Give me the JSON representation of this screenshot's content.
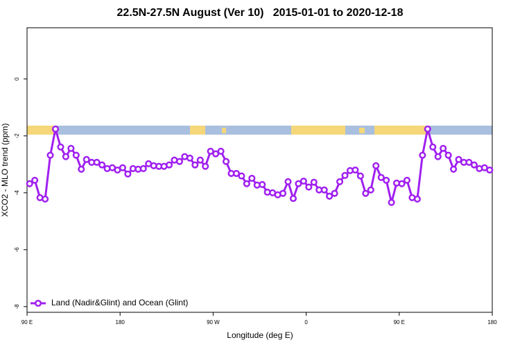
{
  "chart_data": {
    "type": "line",
    "title": "22.5N-27.5N August (Ver 10)   2015-01-01 to 2020-12-18",
    "x_label": "Longitude (deg E)",
    "y_label": "XCO2 - MLO trend (ppm)",
    "xlim": [
      90,
      540
    ],
    "xticks": [
      {
        "value": 90,
        "label": "90 E"
      },
      180,
      {
        "value": 270,
        "label": "90 W"
      },
      {
        "value": 360,
        "label": "0"
      },
      {
        "value": 450,
        "label": "90 E"
      },
      {
        "value": 540,
        "label": "180"
      }
    ],
    "ylim": [
      -8.2,
      1.8
    ],
    "yticks": [
      0,
      -2,
      -4,
      -6,
      -8
    ],
    "legend": "bottom-left",
    "x": [
      92.5,
      97.5,
      102.5,
      107.5,
      112.5,
      117.5,
      122.5,
      127.5,
      132.5,
      137.5,
      142.5,
      147.5,
      152.5,
      157.5,
      162.5,
      167.5,
      172.5,
      177.5,
      182.5,
      187.5,
      192.5,
      197.5,
      202.5,
      207.5,
      212.5,
      217.5,
      222.5,
      227.5,
      232.5,
      237.5,
      242.5,
      247.5,
      252.5,
      257.5,
      262.5,
      267.5,
      272.5,
      277.5,
      282.5,
      287.5,
      292.5,
      297.5,
      302.5,
      307.5,
      312.5,
      317.5,
      322.5,
      327.5,
      332.5,
      337.5,
      342.5,
      347.5,
      352.5,
      357.5,
      362.5,
      367.5,
      372.5,
      377.5,
      382.5,
      387.5,
      392.5,
      397.5,
      402.5,
      407.5,
      412.5,
      417.5,
      422.5,
      427.5,
      432.5,
      437.5,
      442.5,
      447.5,
      452.5,
      457.5,
      462.5,
      467.5,
      472.5,
      477.5,
      482.5,
      487.5,
      492.5,
      497.5,
      502.5,
      507.5,
      512.5,
      517.5,
      522.5,
      527.5,
      532.5,
      537.5
    ],
    "series": [
      {
        "name": "Land (Nadir&Glint) and Ocean (Glint)",
        "color": "#a020f0",
        "values": [
          -3.68,
          -3.56,
          -4.17,
          -4.22,
          -2.68,
          -1.76,
          -2.39,
          -2.73,
          -2.44,
          -2.68,
          -3.17,
          -2.83,
          -2.93,
          -2.93,
          -3.02,
          -3.15,
          -3.12,
          -3.2,
          -3.12,
          -3.34,
          -3.15,
          -3.17,
          -3.15,
          -2.98,
          -3.05,
          -3.07,
          -3.07,
          -3.02,
          -2.85,
          -2.9,
          -2.73,
          -2.78,
          -3.02,
          -2.85,
          -3.07,
          -2.54,
          -2.63,
          -2.54,
          -2.9,
          -3.32,
          -3.32,
          -3.41,
          -3.68,
          -3.49,
          -3.73,
          -3.71,
          -3.98,
          -4.0,
          -4.07,
          -4.02,
          -3.61,
          -4.2,
          -3.68,
          -3.59,
          -3.8,
          -3.63,
          -3.9,
          -3.9,
          -4.12,
          -4.02,
          -3.61,
          -3.39,
          -3.22,
          -3.2,
          -3.41,
          -4.02,
          -3.9,
          -3.05,
          -3.46,
          -3.56,
          -4.34,
          -3.66,
          -3.68,
          -3.56,
          -4.17,
          -4.22,
          -2.68,
          -1.76,
          -2.39,
          -2.73,
          -2.44,
          -2.68,
          -3.17,
          -2.83,
          -2.93,
          -2.93,
          -3.02,
          -3.15,
          -3.12,
          -3.2
        ]
      }
    ]
  }
}
